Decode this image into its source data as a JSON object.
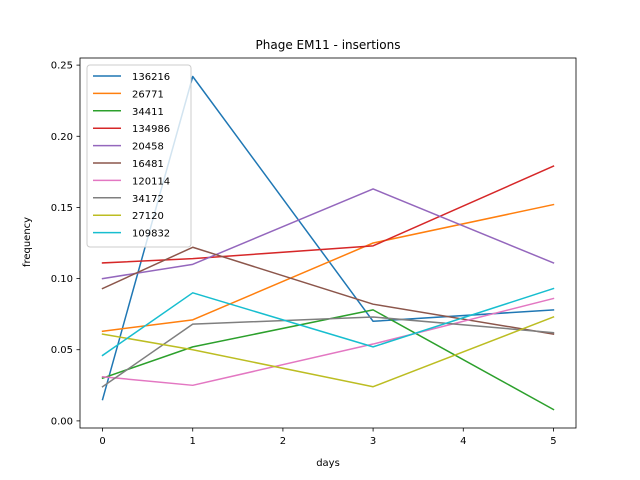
{
  "chart_data": {
    "type": "line",
    "title": "Phage EM11 - insertions",
    "xlabel": "days",
    "ylabel": "frequency",
    "xlim": [
      -0.25,
      5.25
    ],
    "ylim": [
      -0.005,
      0.255
    ],
    "xticks": [
      0,
      1,
      2,
      3,
      4,
      5
    ],
    "yticks": [
      0.0,
      0.05,
      0.1,
      0.15,
      0.2,
      0.25
    ],
    "ytick_labels": [
      "0.00",
      "0.05",
      "0.10",
      "0.15",
      "0.20",
      "0.25"
    ],
    "x": [
      0,
      1,
      3,
      5
    ],
    "legend_position": "upper-left",
    "grid": false,
    "series": [
      {
        "name": "136216",
        "color": "#1f77b4",
        "values": [
          0.015,
          0.242,
          0.07,
          0.078
        ]
      },
      {
        "name": "26771",
        "color": "#ff7f0e",
        "values": [
          0.063,
          0.071,
          0.125,
          0.152
        ]
      },
      {
        "name": "34411",
        "color": "#2ca02c",
        "values": [
          0.03,
          0.052,
          0.078,
          0.008
        ]
      },
      {
        "name": "134986",
        "color": "#d62728",
        "values": [
          0.111,
          0.114,
          0.123,
          0.179
        ]
      },
      {
        "name": "20458",
        "color": "#9467bd",
        "values": [
          0.1,
          0.11,
          0.163,
          0.111
        ]
      },
      {
        "name": "16481",
        "color": "#8c564b",
        "values": [
          0.093,
          0.122,
          0.082,
          0.061
        ]
      },
      {
        "name": "120114",
        "color": "#e377c2",
        "values": [
          0.031,
          0.025,
          0.054,
          0.086
        ]
      },
      {
        "name": "34172",
        "color": "#7f7f7f",
        "values": [
          0.024,
          0.068,
          0.073,
          0.062
        ]
      },
      {
        "name": "27120",
        "color": "#bcbd22",
        "values": [
          0.061,
          0.05,
          0.024,
          0.073
        ]
      },
      {
        "name": "109832",
        "color": "#17becf",
        "values": [
          0.046,
          0.09,
          0.052,
          0.093
        ]
      }
    ]
  }
}
